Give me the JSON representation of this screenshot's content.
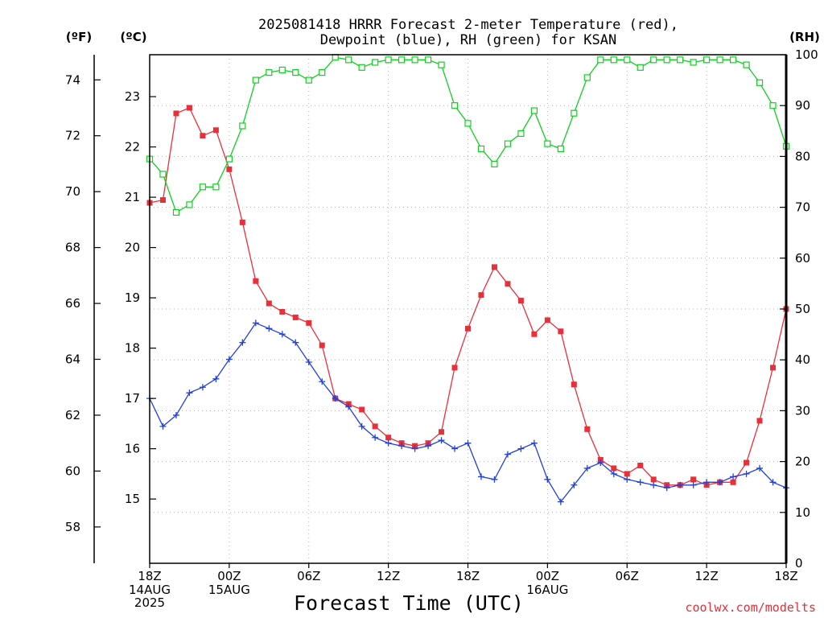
{
  "title": {
    "line1": "2025081418 HRRR Forecast 2-meter Temperature (red),",
    "line2": "Dewpoint (blue), RH (green) for KSAN"
  },
  "units": {
    "f": "(ºF)",
    "c": "(ºC)",
    "rh": "(RH)"
  },
  "xlabel": "Forecast Time (UTC)",
  "credit": "coolwx.com/modelts",
  "x_date_labels": [
    {
      "hour": 0,
      "lines": [
        "14AUG",
        "2025"
      ]
    },
    {
      "hour": 6,
      "lines": [
        "15AUG"
      ]
    },
    {
      "hour": 30,
      "lines": [
        "16AUG"
      ]
    }
  ],
  "chart_data": {
    "type": "line",
    "x_start": "2025-08-14 18Z",
    "x_step_hours": 1,
    "xlim": [
      0,
      48
    ],
    "x_ticks": [
      {
        "hour": 0,
        "label": "18Z"
      },
      {
        "hour": 6,
        "label": "00Z"
      },
      {
        "hour": 12,
        "label": "06Z"
      },
      {
        "hour": 18,
        "label": "12Z"
      },
      {
        "hour": 24,
        "label": "18Z"
      },
      {
        "hour": 30,
        "label": "00Z"
      },
      {
        "hour": 36,
        "label": "06Z"
      },
      {
        "hour": 42,
        "label": "12Z"
      },
      {
        "hour": 48,
        "label": "18Z"
      }
    ],
    "ylim_f": [
      56.7,
      74.9
    ],
    "y_ticks_f": [
      58,
      60,
      62,
      64,
      66,
      68,
      70,
      72,
      74
    ],
    "y_ticks_c": [
      15,
      16,
      17,
      18,
      19,
      20,
      21,
      22,
      23
    ],
    "ylim_rh": [
      0,
      100
    ],
    "y_ticks_rh": [
      0,
      10,
      20,
      30,
      40,
      50,
      60,
      70,
      80,
      90,
      100
    ],
    "grid": true,
    "series": [
      {
        "name": "Temperature",
        "color": "#e8303a",
        "marker": "filled-square",
        "axis": "F",
        "values": [
          69.6,
          69.7,
          72.8,
          73.0,
          72.0,
          72.2,
          70.8,
          68.9,
          66.8,
          66.0,
          65.7,
          65.5,
          65.3,
          64.5,
          62.6,
          62.4,
          62.2,
          61.6,
          61.2,
          61.0,
          60.9,
          61.0,
          61.4,
          63.7,
          65.1,
          66.3,
          67.3,
          66.7,
          66.1,
          64.9,
          65.4,
          65.0,
          63.1,
          61.5,
          60.4,
          60.1,
          59.9,
          60.2,
          59.7,
          59.5,
          59.5,
          59.7,
          59.5,
          59.6,
          59.6,
          60.3,
          61.8,
          63.7,
          65.8
        ]
      },
      {
        "name": "Dewpoint",
        "color": "#2040e0",
        "marker": "plus",
        "axis": "F",
        "values": [
          62.6,
          61.6,
          62.0,
          62.8,
          63.0,
          63.3,
          64.0,
          64.6,
          65.3,
          65.1,
          64.9,
          64.6,
          63.9,
          63.2,
          62.6,
          62.3,
          61.6,
          61.2,
          61.0,
          60.9,
          60.8,
          60.9,
          61.1,
          60.8,
          61.0,
          59.8,
          59.7,
          60.6,
          60.8,
          61.0,
          59.7,
          58.9,
          59.5,
          60.1,
          60.3,
          59.9,
          59.7,
          59.6,
          59.5,
          59.4,
          59.5,
          59.5,
          59.6,
          59.6,
          59.8,
          59.9,
          60.1,
          59.6,
          59.4
        ]
      },
      {
        "name": "RH",
        "color": "#10d020",
        "marker": "open-square",
        "axis": "RH",
        "values": [
          79.5,
          76.5,
          69.0,
          70.5,
          74.0,
          74.0,
          79.5,
          86.0,
          95.0,
          96.5,
          97.0,
          96.5,
          95.0,
          96.5,
          99.5,
          99.0,
          97.5,
          98.5,
          99.0,
          99.0,
          99.0,
          99.0,
          98.0,
          90.0,
          86.5,
          81.5,
          78.5,
          82.5,
          84.5,
          89.0,
          82.5,
          81.5,
          88.5,
          95.5,
          99.0,
          99.0,
          99.0,
          97.5,
          99.0,
          99.0,
          99.0,
          98.5,
          99.0,
          99.0,
          99.0,
          98.0,
          94.5,
          90.0,
          82.0
        ]
      }
    ]
  }
}
